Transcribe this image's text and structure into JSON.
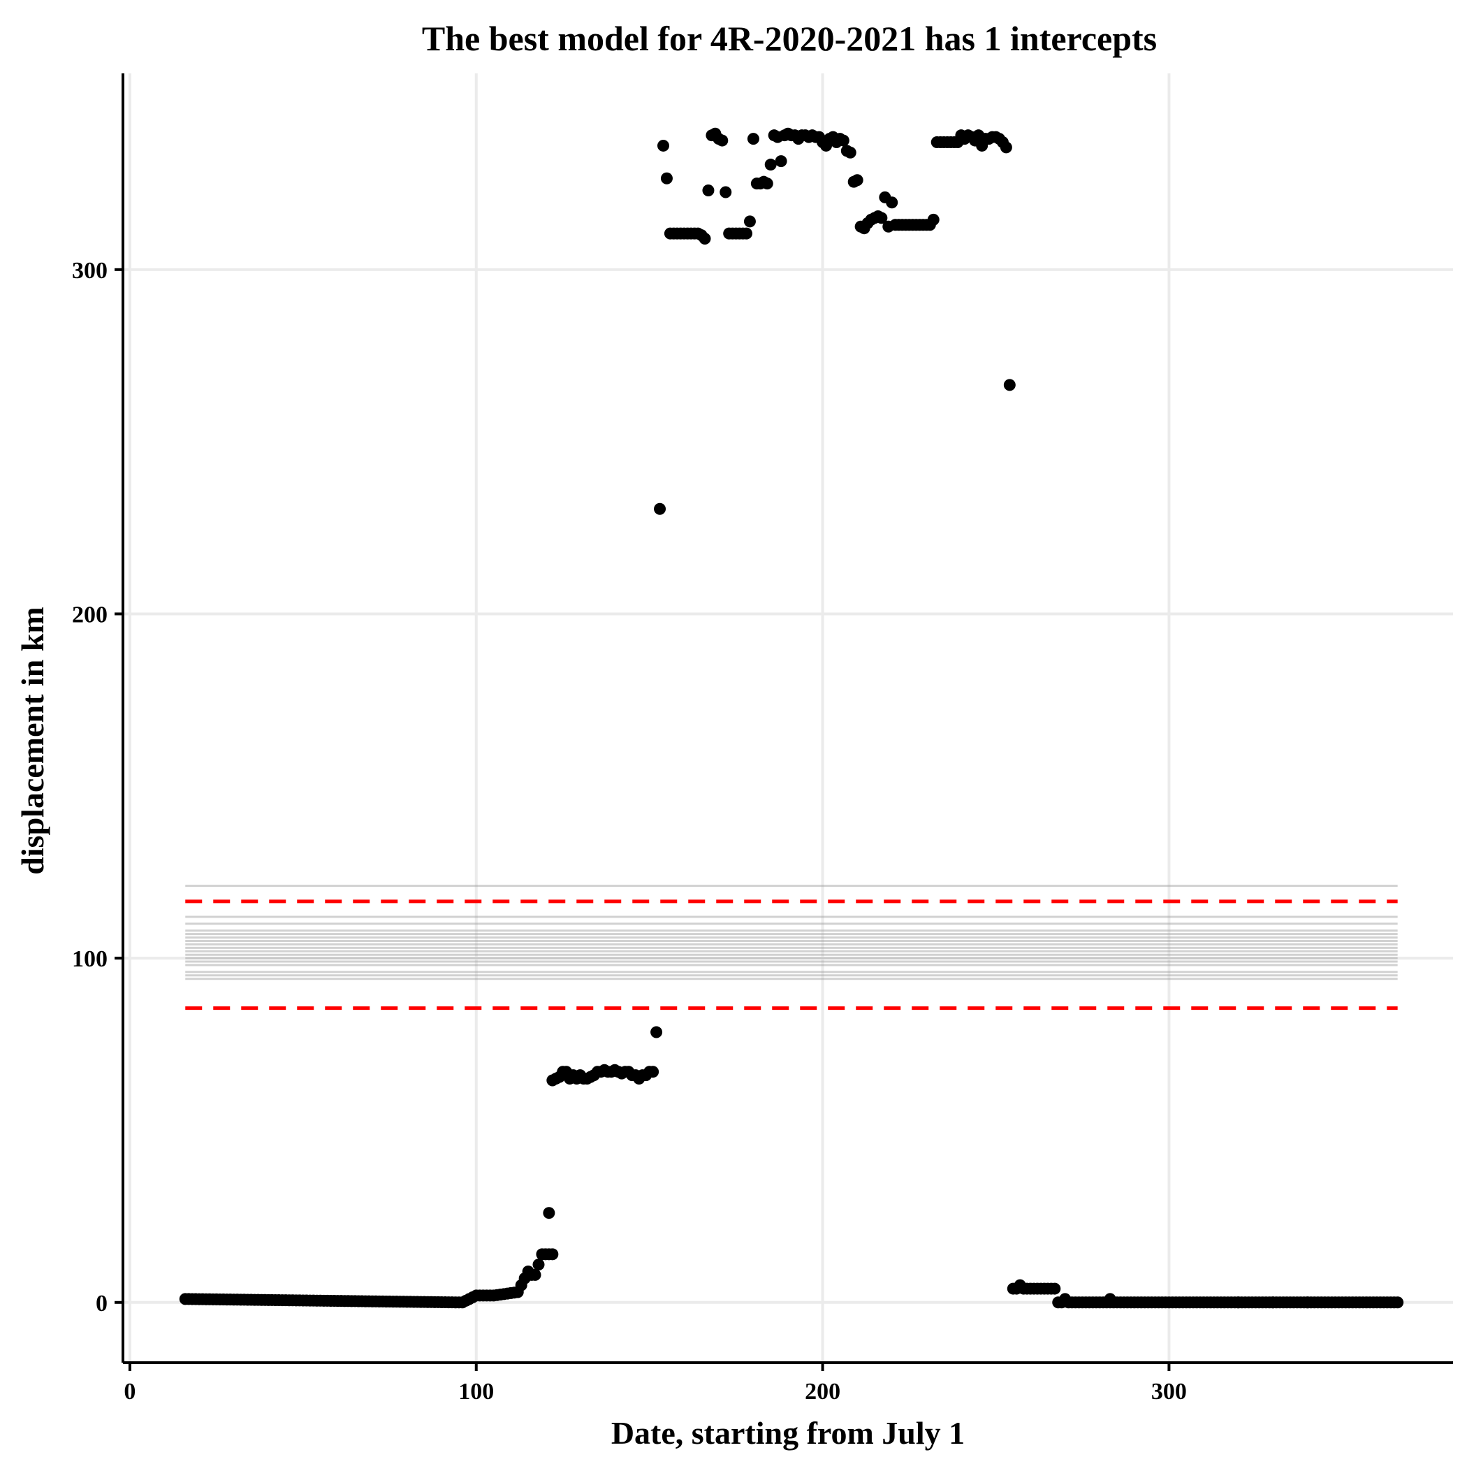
{
  "chart_data": {
    "type": "scatter",
    "title": "The best model for 4R-2020-2021 has 1 intercepts",
    "xlabel": "Date, starting from July 1",
    "ylabel": "displacement in km",
    "xlim": [
      -2,
      382
    ],
    "ylim": [
      -17.5,
      357
    ],
    "x_ticks": [
      0,
      100,
      200,
      300
    ],
    "y_ticks": [
      0,
      100,
      200,
      300
    ],
    "grid": true,
    "legend": "none",
    "colors": {
      "points": "#000000",
      "interval": "#ff0000",
      "model_lines": "#999999",
      "grid": "#ebebeb",
      "axis": "#000000"
    },
    "model_lines": {
      "x_range": [
        16,
        366
      ],
      "intercepts": [
        94,
        95,
        96,
        98,
        99,
        100,
        101,
        102,
        103,
        104,
        105,
        106,
        107,
        108,
        110,
        112,
        121
      ]
    },
    "interval_lines": {
      "x_range": [
        16,
        366
      ],
      "values": [
        85.5,
        116.5
      ]
    },
    "series": [
      {
        "segments": [
          {
            "x": [
              16,
              95
            ],
            "y": [
              1,
              0
            ]
          },
          {
            "x": [
              96,
              100
            ],
            "y": [
              0,
              2
            ]
          },
          {
            "x": [
              101,
              104
            ],
            "y": [
              2,
              2
            ]
          },
          {
            "x": [
              105,
              112
            ],
            "y": [
              2,
              3
            ]
          }
        ],
        "points": [
          [
            113,
            5
          ],
          [
            114,
            7
          ],
          [
            115,
            9
          ],
          [
            116,
            8
          ],
          [
            117,
            8
          ],
          [
            118,
            11
          ],
          [
            119,
            14
          ],
          [
            120,
            14
          ],
          [
            121,
            14
          ],
          [
            122,
            14
          ],
          [
            121,
            26
          ],
          [
            122,
            64.5
          ],
          [
            123,
            65
          ],
          [
            124,
            65.5
          ],
          [
            125,
            67
          ],
          [
            126,
            67
          ],
          [
            127,
            65
          ],
          [
            128,
            66
          ],
          [
            129,
            65
          ],
          [
            130,
            66
          ],
          [
            131,
            65
          ],
          [
            132,
            65
          ],
          [
            133,
            65.5
          ],
          [
            134,
            66
          ],
          [
            135,
            67
          ],
          [
            136,
            67
          ],
          [
            137,
            67.5
          ],
          [
            138,
            67
          ],
          [
            139,
            67
          ],
          [
            140,
            67.5
          ],
          [
            141,
            67
          ],
          [
            142,
            66.5
          ],
          [
            143,
            67
          ],
          [
            144,
            67
          ],
          [
            145,
            66
          ],
          [
            146,
            66
          ],
          [
            147,
            65
          ],
          [
            148,
            66
          ],
          [
            149,
            66
          ],
          [
            150,
            67
          ],
          [
            151,
            67
          ],
          [
            152,
            78.5
          ],
          [
            153,
            230.5
          ],
          [
            154,
            336
          ],
          [
            155,
            326.5
          ],
          [
            156,
            310.5
          ],
          [
            157,
            310.5
          ],
          [
            158,
            310.5
          ],
          [
            159,
            310.5
          ],
          [
            160,
            310.5
          ],
          [
            161,
            310.5
          ],
          [
            162,
            310.5
          ],
          [
            163,
            310.5
          ],
          [
            164,
            310.5
          ],
          [
            165,
            310
          ],
          [
            166,
            309
          ],
          [
            167,
            323
          ],
          [
            168,
            339
          ],
          [
            169,
            339.5
          ],
          [
            170,
            338
          ],
          [
            171,
            337.5
          ],
          [
            172,
            322.5
          ],
          [
            173,
            310.5
          ],
          [
            174,
            310.5
          ],
          [
            175,
            310.5
          ],
          [
            176,
            310.5
          ],
          [
            177,
            310.5
          ],
          [
            178,
            310.5
          ],
          [
            179,
            314
          ],
          [
            180,
            338
          ],
          [
            181,
            325
          ],
          [
            182,
            325
          ],
          [
            183,
            325.5
          ],
          [
            184,
            325
          ],
          [
            185,
            330.5
          ],
          [
            186,
            339
          ],
          [
            187,
            338.5
          ],
          [
            188,
            331.5
          ],
          [
            189,
            339
          ],
          [
            190,
            339.5
          ],
          [
            191,
            339
          ],
          [
            192,
            339
          ],
          [
            193,
            338
          ],
          [
            194,
            339
          ],
          [
            195,
            339
          ],
          [
            196,
            338.5
          ],
          [
            197,
            339
          ],
          [
            198,
            338.5
          ],
          [
            199,
            338.5
          ],
          [
            200,
            337
          ],
          [
            201,
            336
          ],
          [
            202,
            338
          ],
          [
            203,
            338.5
          ],
          [
            204,
            337
          ],
          [
            205,
            338
          ],
          [
            206,
            337.5
          ],
          [
            207,
            334.5
          ],
          [
            208,
            334
          ],
          [
            209,
            325.5
          ],
          [
            210,
            326
          ],
          [
            211,
            312.5
          ],
          [
            212,
            312
          ],
          [
            213,
            313.5
          ],
          [
            214,
            314.5
          ],
          [
            215,
            315
          ],
          [
            216,
            315.5
          ],
          [
            217,
            315
          ],
          [
            218,
            321
          ],
          [
            219,
            312.5
          ],
          [
            220,
            319.5
          ],
          [
            221,
            313
          ],
          [
            222,
            313
          ],
          [
            223,
            313
          ],
          [
            224,
            313
          ],
          [
            225,
            313
          ],
          [
            226,
            313
          ],
          [
            227,
            313
          ],
          [
            228,
            313
          ],
          [
            229,
            313
          ],
          [
            230,
            313
          ],
          [
            231,
            313
          ],
          [
            232,
            314.5
          ],
          [
            233,
            337
          ],
          [
            234,
            337
          ],
          [
            235,
            337
          ],
          [
            236,
            337
          ],
          [
            237,
            337
          ],
          [
            238,
            337
          ],
          [
            239,
            337
          ],
          [
            240,
            339
          ],
          [
            241,
            338
          ],
          [
            242,
            339
          ],
          [
            243,
            338.5
          ],
          [
            244,
            337.5
          ],
          [
            245,
            339
          ],
          [
            246,
            336
          ],
          [
            247,
            338
          ],
          [
            248,
            338
          ],
          [
            249,
            338.5
          ],
          [
            250,
            338.5
          ],
          [
            251,
            338
          ],
          [
            252,
            337
          ],
          [
            253,
            335.5
          ],
          [
            254,
            266.5
          ],
          [
            255,
            4
          ],
          [
            256,
            4
          ],
          [
            257,
            5
          ],
          [
            258,
            4
          ],
          [
            259,
            4
          ],
          [
            260,
            4
          ],
          [
            261,
            4
          ],
          [
            262,
            4
          ],
          [
            263,
            4
          ],
          [
            264,
            4
          ],
          [
            265,
            4
          ],
          [
            266,
            4
          ],
          [
            267,
            4
          ],
          [
            268,
            0
          ],
          [
            269,
            0
          ],
          [
            270,
            1
          ],
          [
            271,
            0
          ],
          [
            272,
            0
          ],
          [
            273,
            0
          ],
          [
            283,
            1
          ],
          [
            320,
            0
          ],
          [
            330,
            0
          ],
          [
            340,
            0
          ]
        ],
        "tail": {
          "x": [
            274,
            366
          ],
          "y": [
            0,
            0
          ]
        }
      }
    ]
  }
}
